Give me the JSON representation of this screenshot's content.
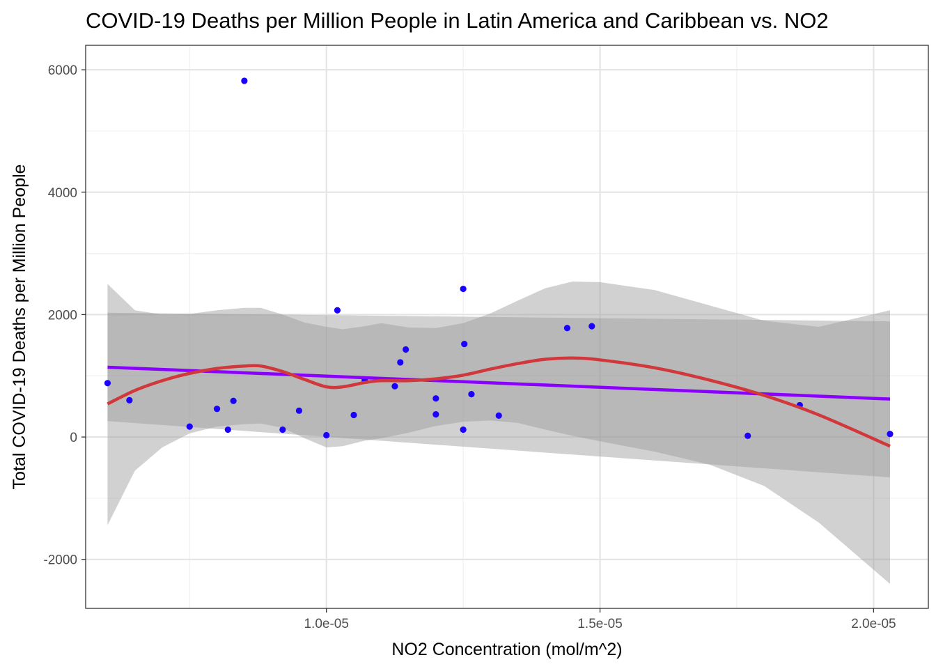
{
  "chart_data": {
    "type": "scatter",
    "title": "COVID-19 Deaths per Million People in Latin America and Caribbean vs. NO2",
    "xlabel": "NO2 Concentration (mol/m^2)",
    "ylabel": "Total COVID-19 Deaths per Million People",
    "xlim": [
      5.6e-06,
      2.1e-05
    ],
    "ylim": [
      -2800,
      6400
    ],
    "x_ticks": [
      1e-05,
      1.5e-05,
      2e-05
    ],
    "x_tick_labels": [
      "1.0e-05",
      "1.5e-05",
      "2.0e-05"
    ],
    "y_ticks": [
      -2000,
      0,
      2000,
      4000,
      6000
    ],
    "y_tick_labels": [
      "-2000",
      "0",
      "2000",
      "4000",
      "6000"
    ],
    "grid": true,
    "theme": "bw",
    "series": [
      {
        "type": "scatter",
        "color": "#1a00ff",
        "points": [
          [
            6e-06,
            880
          ],
          [
            6.4e-06,
            600
          ],
          [
            7.5e-06,
            170
          ],
          [
            8e-06,
            460
          ],
          [
            8.2e-06,
            120
          ],
          [
            8.3e-06,
            590
          ],
          [
            8.5e-06,
            5820
          ],
          [
            9.2e-06,
            120
          ],
          [
            9.5e-06,
            430
          ],
          [
            1e-05,
            30
          ],
          [
            1.02e-05,
            2070
          ],
          [
            1.05e-05,
            360
          ],
          [
            1.07e-05,
            930
          ],
          [
            1.125e-05,
            830
          ],
          [
            1.135e-05,
            1220
          ],
          [
            1.145e-05,
            1430
          ],
          [
            1.2e-05,
            630
          ],
          [
            1.2e-05,
            370
          ],
          [
            1.25e-05,
            2420
          ],
          [
            1.25e-05,
            120
          ],
          [
            1.252e-05,
            1520
          ],
          [
            1.265e-05,
            700
          ],
          [
            1.315e-05,
            350
          ],
          [
            1.44e-05,
            1780
          ],
          [
            1.485e-05,
            1810
          ],
          [
            1.77e-05,
            20
          ],
          [
            1.865e-05,
            520
          ],
          [
            2.03e-05,
            50
          ]
        ]
      },
      {
        "type": "linear-fit",
        "color": "#8a00ff",
        "x": [
          6e-06,
          2.03e-05
        ],
        "y": [
          1140,
          620
        ],
        "ci_lower": [
          260,
          -660
        ],
        "ci_upper": [
          2030,
          1890
        ],
        "band_color": "#999999"
      },
      {
        "type": "loess",
        "color": "#d1383c",
        "x": [
          6e-06,
          6.5e-06,
          7e-06,
          7.5e-06,
          8e-06,
          8.5e-06,
          8.8e-06,
          9.2e-06,
          9.6e-06,
          1e-05,
          1.03e-05,
          1.07e-05,
          1.1e-05,
          1.15e-05,
          1.2e-05,
          1.25e-05,
          1.3e-05,
          1.35e-05,
          1.4e-05,
          1.45e-05,
          1.5e-05,
          1.6e-05,
          1.7e-05,
          1.8e-05,
          1.9e-05,
          2.03e-05
        ],
        "y": [
          540,
          760,
          920,
          1040,
          1120,
          1160,
          1160,
          1070,
          940,
          820,
          820,
          890,
          920,
          920,
          950,
          1010,
          1110,
          1200,
          1270,
          1290,
          1260,
          1130,
          930,
          680,
          360,
          -150
        ],
        "ci_lower": [
          -1440,
          -550,
          -170,
          60,
          170,
          210,
          220,
          150,
          -20,
          -170,
          -150,
          -60,
          -20,
          70,
          180,
          250,
          270,
          230,
          120,
          20,
          -70,
          -240,
          -450,
          -800,
          -1400,
          -2400
        ],
        "ci_upper": [
          2500,
          2070,
          2000,
          2010,
          2070,
          2110,
          2110,
          2000,
          1870,
          1800,
          1760,
          1810,
          1860,
          1790,
          1780,
          1860,
          2020,
          2230,
          2430,
          2540,
          2530,
          2400,
          2150,
          1900,
          1800,
          2070
        ],
        "band_color": "#999999"
      }
    ]
  }
}
